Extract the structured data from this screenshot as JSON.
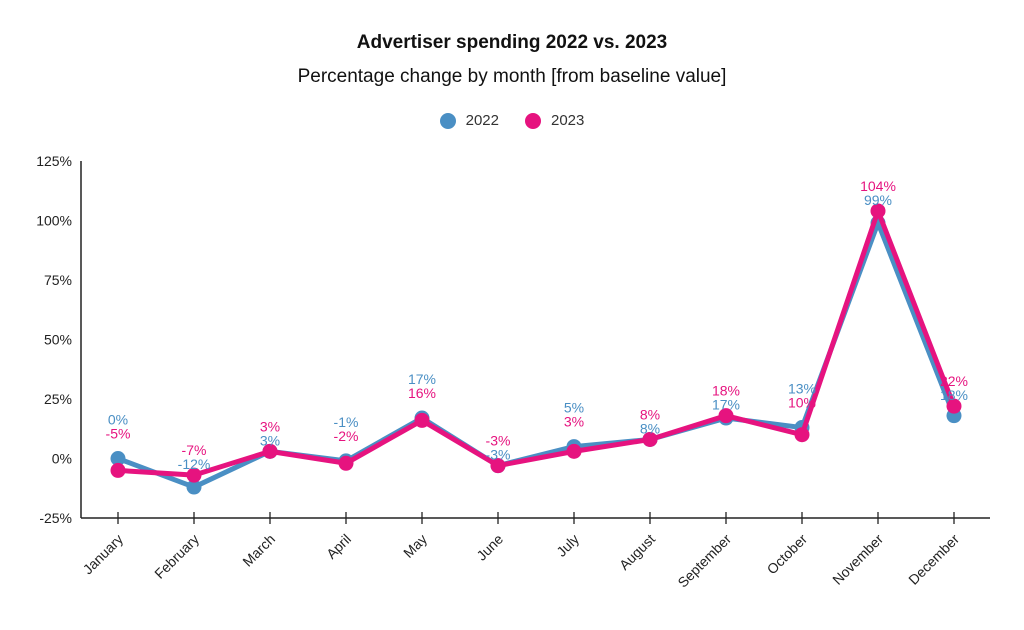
{
  "chart_data": {
    "type": "line",
    "title": "Advertiser spending 2022 vs. 2023",
    "subtitle": "Percentage change by month [from baseline value]",
    "xlabel": "",
    "ylabel": "",
    "categories": [
      "January",
      "February",
      "March",
      "April",
      "May",
      "June",
      "July",
      "August",
      "September",
      "October",
      "November",
      "December"
    ],
    "series": [
      {
        "name": "2022",
        "color": "#4a8fc4",
        "values": [
          0,
          -12,
          3,
          -1,
          17,
          -3,
          5,
          8,
          17,
          13,
          99,
          18
        ]
      },
      {
        "name": "2023",
        "color": "#e6137f",
        "values": [
          -5,
          -7,
          3,
          -2,
          16,
          -3,
          3,
          8,
          18,
          10,
          104,
          22
        ]
      }
    ],
    "ylim": [
      -25,
      125
    ],
    "yticks": [
      "-25%",
      "0%",
      "25%",
      "50%",
      "75%",
      "100%",
      "125%"
    ],
    "ytick_values": [
      -25,
      0,
      25,
      50,
      75,
      100,
      125
    ],
    "grid": false,
    "legend": "top-center",
    "label_suffix": "%"
  }
}
